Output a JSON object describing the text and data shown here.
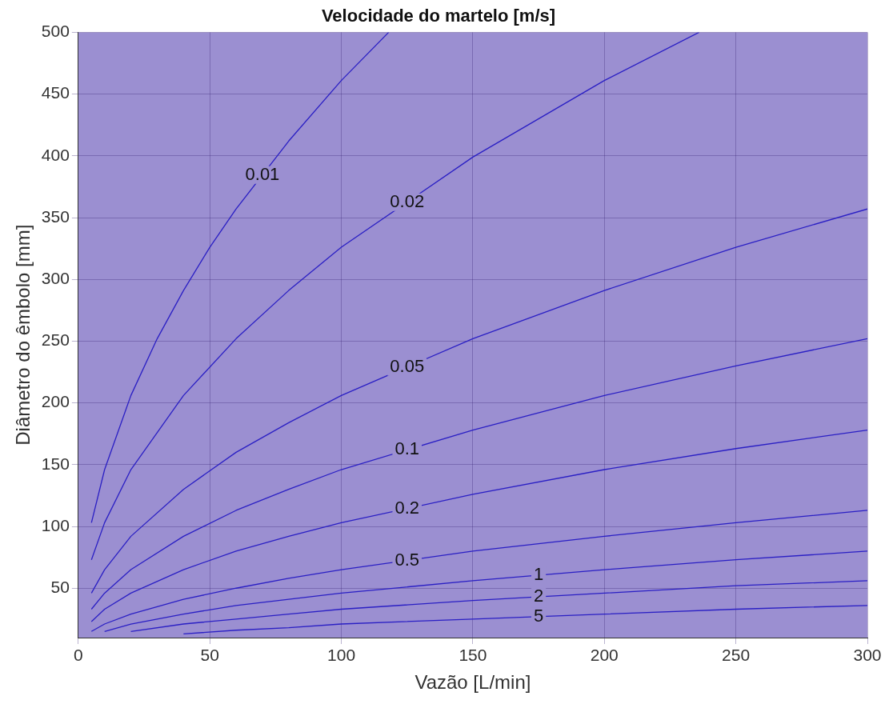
{
  "chart_data": {
    "type": "line",
    "title": "Velocidade do martelo [m/s]",
    "xlabel": "Vazão [L/min]",
    "ylabel": "Diâmetro do êmbolo [mm]",
    "xlim": [
      0,
      300
    ],
    "xticks": [
      0,
      50,
      100,
      150,
      200,
      250,
      300
    ],
    "ylim": [
      10,
      500
    ],
    "yticks": [
      50,
      100,
      150,
      200,
      250,
      300,
      350,
      400,
      450,
      500
    ],
    "grid": true,
    "legend": false,
    "marker": "none",
    "line_style": "solid",
    "series": [
      {
        "name": "0.01",
        "color": "#2a1fc4",
        "x": [
          5,
          10,
          20,
          30,
          40,
          50,
          60,
          80,
          100,
          118
        ],
        "values": [
          103,
          146,
          206,
          252,
          291,
          326,
          357,
          412,
          461,
          500
        ]
      },
      {
        "name": "0.02",
        "color": "#2a1fc4",
        "x": [
          5,
          10,
          20,
          40,
          60,
          80,
          100,
          150,
          200,
          236
        ],
        "values": [
          73,
          103,
          146,
          206,
          252,
          291,
          326,
          399,
          461,
          500
        ]
      },
      {
        "name": "0.05",
        "color": "#2a1fc4",
        "x": [
          5,
          10,
          20,
          40,
          60,
          80,
          100,
          150,
          200,
          250,
          300
        ],
        "values": [
          46,
          65,
          92,
          130,
          160,
          184,
          206,
          252,
          291,
          326,
          357
        ]
      },
      {
        "name": "0.1",
        "color": "#2a1fc4",
        "x": [
          5,
          10,
          20,
          40,
          60,
          80,
          100,
          150,
          200,
          250,
          300
        ],
        "values": [
          33,
          46,
          65,
          92,
          113,
          130,
          146,
          178,
          206,
          230,
          252
        ]
      },
      {
        "name": "0.2",
        "color": "#2a1fc4",
        "x": [
          5,
          10,
          20,
          40,
          60,
          80,
          100,
          150,
          200,
          250,
          300
        ],
        "values": [
          23,
          33,
          46,
          65,
          80,
          92,
          103,
          126,
          146,
          163,
          178
        ]
      },
      {
        "name": "0.5",
        "color": "#2a1fc4",
        "x": [
          5,
          10,
          20,
          40,
          60,
          80,
          100,
          150,
          200,
          250,
          300
        ],
        "values": [
          15,
          21,
          29,
          41,
          50,
          58,
          65,
          80,
          92,
          103,
          113
        ]
      },
      {
        "name": "1",
        "color": "#2a1fc4",
        "x": [
          10,
          20,
          40,
          60,
          80,
          100,
          150,
          200,
          250,
          300
        ],
        "values": [
          15,
          21,
          29,
          36,
          41,
          46,
          56,
          65,
          73,
          80
        ]
      },
      {
        "name": "2",
        "color": "#2a1fc4",
        "x": [
          20,
          40,
          60,
          80,
          100,
          150,
          200,
          250,
          300
        ],
        "values": [
          15,
          21,
          25,
          29,
          33,
          40,
          46,
          52,
          56
        ]
      },
      {
        "name": "5",
        "color": "#2a1fc4",
        "x": [
          40,
          60,
          80,
          100,
          150,
          200,
          250,
          300
        ],
        "values": [
          13,
          16,
          18,
          21,
          25,
          29,
          33,
          36
        ]
      }
    ]
  }
}
